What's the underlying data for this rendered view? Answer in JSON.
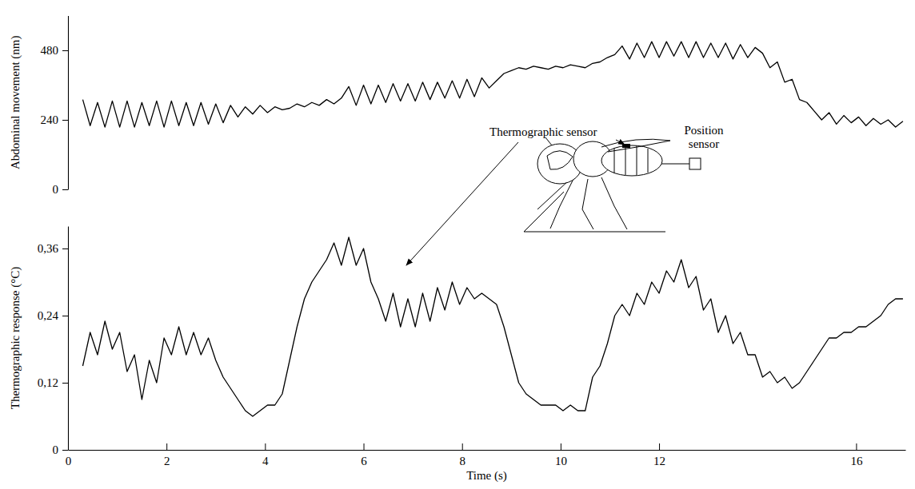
{
  "chart_data": [
    {
      "type": "line",
      "ylabel": "Abdominal movement (nm)",
      "color": "#000000",
      "xlim": [
        0,
        17
      ],
      "ylim": [
        0,
        600
      ],
      "yticks": [
        0,
        240,
        480
      ],
      "tick_labels": "y",
      "x": [
        0.3,
        0.45,
        0.6,
        0.75,
        0.9,
        1.05,
        1.2,
        1.35,
        1.5,
        1.65,
        1.8,
        1.95,
        2.1,
        2.25,
        2.4,
        2.55,
        2.7,
        2.85,
        3,
        3.15,
        3.3,
        3.45,
        3.6,
        3.75,
        3.9,
        4.05,
        4.2,
        4.35,
        4.5,
        4.65,
        4.8,
        4.95,
        5.1,
        5.25,
        5.4,
        5.55,
        5.7,
        5.85,
        6,
        6.15,
        6.3,
        6.45,
        6.6,
        6.75,
        6.9,
        7.05,
        7.2,
        7.35,
        7.5,
        7.65,
        7.8,
        7.95,
        8.1,
        8.25,
        8.4,
        8.55,
        8.7,
        8.85,
        9,
        9.15,
        9.3,
        9.45,
        9.6,
        9.75,
        9.9,
        10.05,
        10.2,
        10.35,
        10.5,
        10.65,
        10.8,
        10.95,
        11.1,
        11.25,
        11.4,
        11.55,
        11.7,
        11.85,
        12,
        12.15,
        12.3,
        12.45,
        12.6,
        12.75,
        12.9,
        13.05,
        13.2,
        13.35,
        13.5,
        13.65,
        13.8,
        13.95,
        14.1,
        14.25,
        14.4,
        14.55,
        14.7,
        14.85,
        15,
        15.15,
        15.3,
        15.45,
        15.6,
        15.75,
        15.9,
        16.05,
        16.2,
        16.35,
        16.5,
        16.65,
        16.8,
        16.95
      ],
      "values": [
        310,
        220,
        300,
        215,
        305,
        215,
        305,
        215,
        300,
        220,
        305,
        215,
        305,
        220,
        300,
        220,
        300,
        225,
        295,
        230,
        290,
        250,
        285,
        260,
        290,
        265,
        285,
        275,
        280,
        295,
        285,
        300,
        290,
        310,
        295,
        315,
        355,
        290,
        360,
        295,
        360,
        300,
        365,
        305,
        365,
        305,
        370,
        310,
        370,
        315,
        375,
        315,
        380,
        320,
        385,
        350,
        375,
        400,
        410,
        420,
        415,
        425,
        420,
        415,
        425,
        420,
        430,
        425,
        420,
        435,
        440,
        455,
        465,
        495,
        450,
        505,
        455,
        510,
        455,
        510,
        460,
        510,
        455,
        510,
        455,
        505,
        455,
        505,
        450,
        500,
        455,
        490,
        470,
        420,
        440,
        370,
        380,
        310,
        300,
        270,
        240,
        265,
        225,
        255,
        230,
        250,
        220,
        245,
        225,
        240,
        215,
        235
      ]
    },
    {
      "type": "line",
      "ylabel": "Thermographic response (°C)",
      "xlabel": "Time (s)",
      "color": "#000000",
      "xlim": [
        0,
        17
      ],
      "ylim": [
        0,
        0.4
      ],
      "xticks": [
        0,
        2,
        4,
        6,
        8,
        10,
        12,
        16
      ],
      "yticks": [
        0,
        {
          "value": 0.12,
          "label": "0,12"
        },
        {
          "value": 0.24,
          "label": "0,24"
        },
        {
          "value": 0.36,
          "label": "0,36"
        }
      ],
      "annotations": [
        "Thermographic sensor",
        "Position sensor"
      ],
      "x": [
        0.3,
        0.45,
        0.6,
        0.75,
        0.9,
        1.05,
        1.2,
        1.35,
        1.5,
        1.65,
        1.8,
        1.95,
        2.1,
        2.25,
        2.4,
        2.55,
        2.7,
        2.85,
        3,
        3.15,
        3.3,
        3.45,
        3.6,
        3.75,
        3.9,
        4.05,
        4.2,
        4.35,
        4.5,
        4.65,
        4.8,
        4.95,
        5.1,
        5.25,
        5.4,
        5.55,
        5.7,
        5.85,
        6,
        6.15,
        6.3,
        6.45,
        6.6,
        6.75,
        6.9,
        7.05,
        7.2,
        7.35,
        7.5,
        7.65,
        7.8,
        7.95,
        8.1,
        8.25,
        8.4,
        8.55,
        8.7,
        8.85,
        9,
        9.15,
        9.3,
        9.45,
        9.6,
        9.75,
        9.9,
        10.05,
        10.2,
        10.35,
        10.5,
        10.65,
        10.8,
        10.95,
        11.1,
        11.25,
        11.4,
        11.55,
        11.7,
        11.85,
        12,
        12.15,
        12.3,
        12.45,
        12.6,
        12.75,
        12.9,
        13.05,
        13.2,
        13.35,
        13.5,
        13.65,
        13.8,
        13.95,
        14.1,
        14.25,
        14.4,
        14.55,
        14.7,
        14.85,
        15,
        15.15,
        15.3,
        15.45,
        15.6,
        15.75,
        15.9,
        16.05,
        16.2,
        16.35,
        16.5,
        16.65,
        16.8,
        16.95
      ],
      "values": [
        0.15,
        0.21,
        0.17,
        0.23,
        0.18,
        0.21,
        0.14,
        0.17,
        0.09,
        0.16,
        0.12,
        0.2,
        0.17,
        0.22,
        0.17,
        0.21,
        0.17,
        0.2,
        0.16,
        0.13,
        0.11,
        0.09,
        0.07,
        0.06,
        0.07,
        0.08,
        0.08,
        0.1,
        0.16,
        0.22,
        0.27,
        0.3,
        0.32,
        0.34,
        0.37,
        0.33,
        0.38,
        0.33,
        0.36,
        0.3,
        0.27,
        0.23,
        0.28,
        0.22,
        0.27,
        0.22,
        0.28,
        0.23,
        0.29,
        0.25,
        0.3,
        0.26,
        0.29,
        0.27,
        0.28,
        0.27,
        0.26,
        0.22,
        0.17,
        0.12,
        0.1,
        0.09,
        0.08,
        0.08,
        0.08,
        0.07,
        0.08,
        0.07,
        0.07,
        0.13,
        0.15,
        0.19,
        0.24,
        0.26,
        0.24,
        0.28,
        0.26,
        0.3,
        0.28,
        0.32,
        0.3,
        0.34,
        0.29,
        0.31,
        0.25,
        0.27,
        0.21,
        0.24,
        0.19,
        0.21,
        0.17,
        0.17,
        0.13,
        0.14,
        0.12,
        0.13,
        0.11,
        0.12,
        0.14,
        0.16,
        0.18,
        0.2,
        0.2,
        0.21,
        0.21,
        0.22,
        0.22,
        0.23,
        0.24,
        0.26,
        0.27,
        0.27
      ]
    }
  ]
}
